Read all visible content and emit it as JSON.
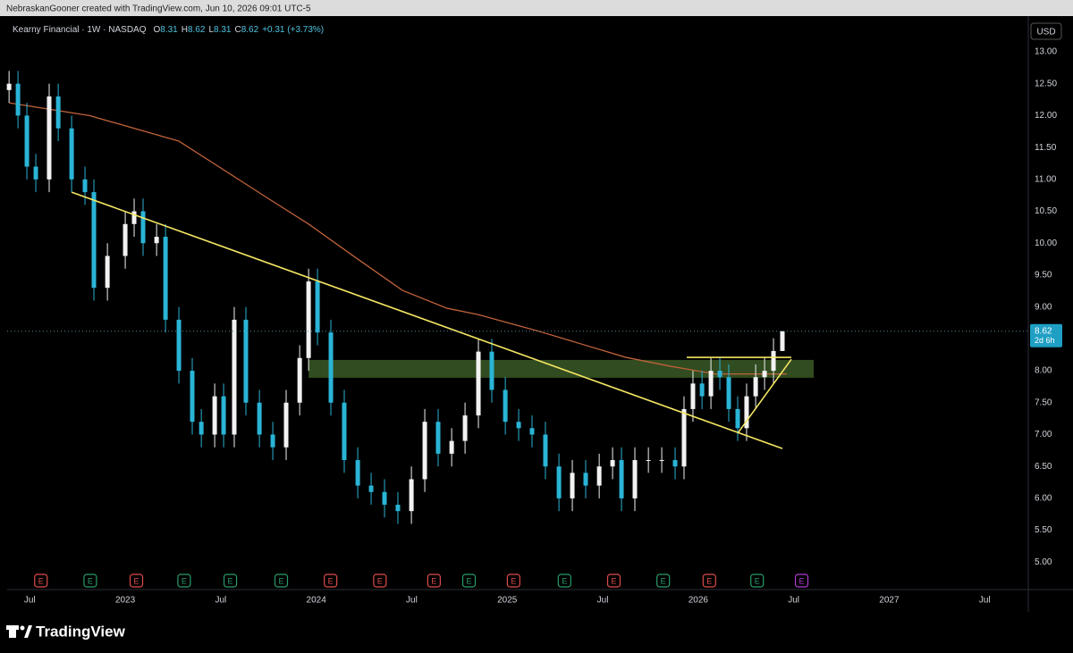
{
  "header": {
    "text": "NebraskanGooner created with TradingView.com, Jun 10, 2026 09:01 UTC-5"
  },
  "chart_data": {
    "type": "candlestick",
    "title": "Kearny Financial · 1W · NASDAQ",
    "legend_labels": [
      "O",
      "H",
      "L",
      "C"
    ],
    "change": "+0.31 (+3.73%)",
    "currency": "USD",
    "countdown": "2d 6h",
    "up_color": "#f2f2f2",
    "down_color": "#2ab4d6",
    "x": [
      4.7,
      5.26,
      5.82,
      6.38,
      7.22,
      7.79,
      8.63,
      9.47,
      10.03,
      10.88,
      12.0,
      12.56,
      13.12,
      13.97,
      14.53,
      15.37,
      16.21,
      16.78,
      17.62,
      18.18,
      18.85,
      19.58,
      20.43,
      21.27,
      22.11,
      22.96,
      23.52,
      24.08,
      24.92,
      25.76,
      26.61,
      27.45,
      28.29,
      29.13,
      29.98,
      30.82,
      31.66,
      32.51,
      33.35,
      34.19,
      35.03,
      35.88,
      36.72,
      37.56,
      38.4,
      39.25,
      40.09,
      40.93,
      41.78,
      42.62,
      43.18,
      44.02,
      44.87,
      45.71,
      46.55,
      47.11,
      47.67,
      48.24,
      48.8,
      49.36,
      49.92,
      50.48,
      51.04,
      51.61,
      52.17,
      52.73,
      53.29
    ],
    "open": [
      12.4,
      12.5,
      12.0,
      11.2,
      11.0,
      12.3,
      11.8,
      11.0,
      10.8,
      9.3,
      9.8,
      10.3,
      10.5,
      10.0,
      10.1,
      8.8,
      8.0,
      7.2,
      7.0,
      7.6,
      7.0,
      8.8,
      7.5,
      7.0,
      6.8,
      7.5,
      8.2,
      9.4,
      8.6,
      7.5,
      6.6,
      6.2,
      6.1,
      5.9,
      5.8,
      6.3,
      7.2,
      6.7,
      6.9,
      7.3,
      8.3,
      7.7,
      7.2,
      7.1,
      7.0,
      6.5,
      6.0,
      6.4,
      6.2,
      6.5,
      6.6,
      6.0,
      6.6,
      6.6,
      6.6,
      6.5,
      7.4,
      7.8,
      7.6,
      8.0,
      7.9,
      7.4,
      7.1,
      7.6,
      7.9,
      8.0,
      8.31
    ],
    "high": [
      12.7,
      12.7,
      12.2,
      11.4,
      12.5,
      12.5,
      12.0,
      11.2,
      11.0,
      10.0,
      10.5,
      10.7,
      10.7,
      10.3,
      10.3,
      9.0,
      8.2,
      7.4,
      7.8,
      7.8,
      9.0,
      9.0,
      7.7,
      7.2,
      7.7,
      8.4,
      9.6,
      9.6,
      8.8,
      7.7,
      6.8,
      6.4,
      6.3,
      6.1,
      6.5,
      7.4,
      7.4,
      7.1,
      7.5,
      8.5,
      8.5,
      7.9,
      7.4,
      7.3,
      7.2,
      6.7,
      6.6,
      6.6,
      6.7,
      6.8,
      6.8,
      6.8,
      6.8,
      6.8,
      6.8,
      7.6,
      8.0,
      8.0,
      8.2,
      8.2,
      8.1,
      7.6,
      7.8,
      8.1,
      8.2,
      8.51,
      8.62
    ],
    "low": [
      12.2,
      11.8,
      11.0,
      10.8,
      10.8,
      11.6,
      10.8,
      10.6,
      9.1,
      9.1,
      9.6,
      10.1,
      9.8,
      9.8,
      8.6,
      7.8,
      7.0,
      6.8,
      6.8,
      6.8,
      6.8,
      7.3,
      6.8,
      6.6,
      6.6,
      7.3,
      8.0,
      8.4,
      7.3,
      6.4,
      6.0,
      5.9,
      5.7,
      5.6,
      5.6,
      6.1,
      6.5,
      6.5,
      6.7,
      7.1,
      7.5,
      7.0,
      6.9,
      6.8,
      6.3,
      5.8,
      5.8,
      6.0,
      6.0,
      6.3,
      5.8,
      5.8,
      6.4,
      6.4,
      6.3,
      6.3,
      7.2,
      7.4,
      7.4,
      7.7,
      7.2,
      6.9,
      6.9,
      7.4,
      7.7,
      7.8,
      8.31
    ],
    "close": [
      12.5,
      12.0,
      11.2,
      11.0,
      12.3,
      11.8,
      11.0,
      10.8,
      9.3,
      9.8,
      10.3,
      10.5,
      10.0,
      10.1,
      8.8,
      8.0,
      7.2,
      7.0,
      7.6,
      7.0,
      8.8,
      7.5,
      7.0,
      6.8,
      7.5,
      8.2,
      9.4,
      8.6,
      7.5,
      6.6,
      6.2,
      6.1,
      5.9,
      5.8,
      6.3,
      7.2,
      6.7,
      6.9,
      7.3,
      8.3,
      7.7,
      7.2,
      7.1,
      7.0,
      6.5,
      6.0,
      6.4,
      6.2,
      6.5,
      6.6,
      6.0,
      6.6,
      6.6,
      6.6,
      6.5,
      7.4,
      7.8,
      7.6,
      8.0,
      7.9,
      7.4,
      7.1,
      7.6,
      7.9,
      8.0,
      8.31,
      8.62
    ],
    "ma": {
      "color": "#c0623a",
      "x": [
        4.7,
        9.75,
        15.37,
        20.99,
        23.52,
        26.61,
        29.42,
        32.22,
        34.19,
        37.84,
        40.65,
        43.46,
        46.27,
        49.08,
        53.57
      ],
      "values": [
        12.2,
        12.0,
        11.6,
        10.7,
        10.3,
        9.75,
        9.26,
        8.98,
        8.88,
        8.63,
        8.42,
        8.21,
        8.07,
        7.95,
        7.95
      ]
    },
    "trendlines": [
      {
        "color": "#f5e663",
        "x": [
          8.63,
          53.29
        ],
        "values": [
          10.8,
          6.78
        ]
      },
      {
        "color": "#f5e663",
        "x": [
          47.28,
          53.85
        ],
        "values": [
          8.21,
          8.21
        ]
      },
      {
        "color": "#f5e663",
        "x": [
          50.48,
          53.85
        ],
        "values": [
          7.02,
          8.18
        ]
      }
    ],
    "zone": {
      "color": "#5a8a3a",
      "x": [
        23.52,
        55.26
      ],
      "values": [
        7.89,
        8.17
      ]
    },
    "earnings": {
      "label": "E",
      "x": [
        6.7,
        9.8,
        12.7,
        15.7,
        18.6,
        21.8,
        24.9,
        28.0,
        31.4,
        33.6,
        36.4,
        39.6,
        42.7,
        45.8,
        48.7,
        51.7,
        54.5
      ],
      "colors": [
        "#e04b4b",
        "#2a9d6a",
        "#e04b4b",
        "#2a9d6a",
        "#2a9d6a",
        "#2a9d6a",
        "#e04b4b",
        "#e04b4b",
        "#e04b4b",
        "#2a9d6a",
        "#e04b4b",
        "#2a9d6a",
        "#e04b4b",
        "#2a9d6a",
        "#e04b4b",
        "#2a9d6a",
        "#b23ad6"
      ]
    },
    "xlim": [
      4.58,
      68.74
    ],
    "xticks": [
      {
        "value": 6,
        "label": "Jul"
      },
      {
        "value": 12,
        "label": "2023"
      },
      {
        "value": 18,
        "label": "Jul"
      },
      {
        "value": 24,
        "label": "2024"
      },
      {
        "value": 30,
        "label": "Jul"
      },
      {
        "value": 36,
        "label": "2025"
      },
      {
        "value": 42,
        "label": "Jul"
      },
      {
        "value": 48,
        "label": "2026"
      },
      {
        "value": 54,
        "label": "Jul"
      },
      {
        "value": 60,
        "label": "2027"
      },
      {
        "value": 66,
        "label": "Jul"
      }
    ],
    "ylim": [
      4.57,
      13.56
    ],
    "yticks": [
      {
        "value": 5,
        "label": "5.00"
      },
      {
        "value": 5.5,
        "label": "5.50"
      },
      {
        "value": 6,
        "label": "6.00"
      },
      {
        "value": 6.5,
        "label": "6.50"
      },
      {
        "value": 7,
        "label": "7.00"
      },
      {
        "value": 7.5,
        "label": "7.50"
      },
      {
        "value": 8,
        "label": "8.00"
      },
      {
        "value": 8.5,
        "label": "8.50"
      },
      {
        "value": 9,
        "label": "9.00"
      },
      {
        "value": 9.5,
        "label": "9.50"
      },
      {
        "value": 10,
        "label": "10.00"
      },
      {
        "value": 10.5,
        "label": "10.50"
      },
      {
        "value": 11,
        "label": "11.00"
      },
      {
        "value": 11.5,
        "label": "11.50"
      },
      {
        "value": 12,
        "label": "12.00"
      },
      {
        "value": 12.5,
        "label": "12.50"
      },
      {
        "value": 13,
        "label": "13.00"
      }
    ]
  },
  "footer": {
    "brand": "TradingView"
  }
}
